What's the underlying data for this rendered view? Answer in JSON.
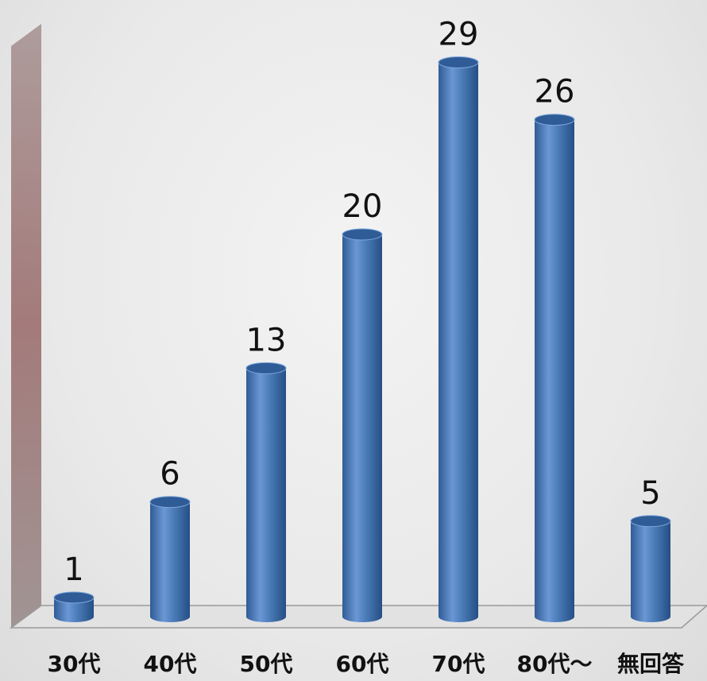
{
  "chart_data": {
    "type": "bar",
    "categories": [
      "30代",
      "40代",
      "50代",
      "60代",
      "70代",
      "80代～",
      "無回答"
    ],
    "values": [
      1,
      6,
      13,
      20,
      29,
      26,
      5
    ],
    "title": "",
    "xlabel": "",
    "ylabel": "",
    "data_labels": [
      "1",
      "6",
      "13",
      "20",
      "29",
      "26",
      "5"
    ],
    "grid": false,
    "legend": "none",
    "colors": {
      "bar": "#4f81bd",
      "bar_dark": "#2f5c96",
      "bar_light": "#7ea6dc",
      "wall": "#9a7a7a",
      "floor": "#d8d8d8"
    }
  }
}
